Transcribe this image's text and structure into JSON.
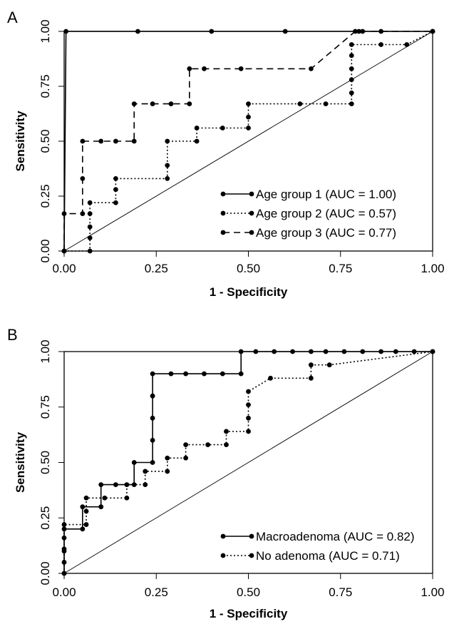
{
  "chart_data": [
    {
      "panel": "A",
      "type": "line",
      "xlabel": "1 - Specificity",
      "ylabel": "Sensitivity",
      "xlim": [
        0,
        1
      ],
      "ylim": [
        0,
        1
      ],
      "xticks": [
        "0.00",
        "0.25",
        "0.50",
        "0.75",
        "1.00"
      ],
      "yticks": [
        "0.00",
        "0.25",
        "0.50",
        "0.75",
        "1.00"
      ],
      "grid": false,
      "reference_line": true,
      "legend_position": "bottom-right",
      "series": [
        {
          "name": "Age group 1 (AUC = 1.00)",
          "dash": "solid",
          "points": [
            [
              0,
              0
            ],
            [
              0.005,
              1
            ],
            [
              0.2,
              1
            ],
            [
              0.4,
              1
            ],
            [
              0.6,
              1
            ],
            [
              0.8,
              1
            ],
            [
              1,
              1
            ]
          ]
        },
        {
          "name": "Age group 2 (AUC = 0.57)",
          "dash": "dotted",
          "points": [
            [
              0,
              0
            ],
            [
              0.07,
              0
            ],
            [
              0.07,
              0.06
            ],
            [
              0.07,
              0.11
            ],
            [
              0.07,
              0.17
            ],
            [
              0.07,
              0.22
            ],
            [
              0.14,
              0.22
            ],
            [
              0.14,
              0.28
            ],
            [
              0.14,
              0.33
            ],
            [
              0.28,
              0.33
            ],
            [
              0.28,
              0.39
            ],
            [
              0.28,
              0.5
            ],
            [
              0.36,
              0.5
            ],
            [
              0.36,
              0.56
            ],
            [
              0.43,
              0.56
            ],
            [
              0.5,
              0.56
            ],
            [
              0.5,
              0.61
            ],
            [
              0.5,
              0.67
            ],
            [
              0.64,
              0.67
            ],
            [
              0.71,
              0.67
            ],
            [
              0.78,
              0.67
            ],
            [
              0.78,
              0.72
            ],
            [
              0.78,
              0.78
            ],
            [
              0.78,
              0.83
            ],
            [
              0.78,
              0.89
            ],
            [
              0.78,
              0.94
            ],
            [
              0.86,
              0.94
            ],
            [
              0.93,
              0.94
            ],
            [
              1,
              1
            ]
          ]
        },
        {
          "name": "Age group 3 (AUC = 0.77)",
          "dash": "dashed",
          "points": [
            [
              0,
              0
            ],
            [
              0,
              0.17
            ],
            [
              0.05,
              0.17
            ],
            [
              0.05,
              0.33
            ],
            [
              0.05,
              0.5
            ],
            [
              0.1,
              0.5
            ],
            [
              0.14,
              0.5
            ],
            [
              0.19,
              0.5
            ],
            [
              0.19,
              0.67
            ],
            [
              0.24,
              0.67
            ],
            [
              0.29,
              0.67
            ],
            [
              0.34,
              0.67
            ],
            [
              0.34,
              0.83
            ],
            [
              0.38,
              0.83
            ],
            [
              0.48,
              0.83
            ],
            [
              0.67,
              0.83
            ],
            [
              0.79,
              1
            ],
            [
              0.81,
              1
            ],
            [
              0.86,
              1
            ],
            [
              1,
              1
            ]
          ]
        }
      ]
    },
    {
      "panel": "B",
      "type": "line",
      "xlabel": "1 - Specificity",
      "ylabel": "Sensitivity",
      "xlim": [
        0,
        1
      ],
      "ylim": [
        0,
        1
      ],
      "xticks": [
        "0.00",
        "0.25",
        "0.50",
        "0.75",
        "1.00"
      ],
      "yticks": [
        "0.00",
        "0.25",
        "0.50",
        "0.75",
        "1.00"
      ],
      "grid": false,
      "reference_line": true,
      "legend_position": "bottom-right",
      "series": [
        {
          "name": "Macroadenoma (AUC = 0.82)",
          "dash": "solid",
          "points": [
            [
              0,
              0
            ],
            [
              0,
              0.1
            ],
            [
              0,
              0.2
            ],
            [
              0.05,
              0.2
            ],
            [
              0.05,
              0.3
            ],
            [
              0.1,
              0.3
            ],
            [
              0.1,
              0.4
            ],
            [
              0.14,
              0.4
            ],
            [
              0.19,
              0.4
            ],
            [
              0.19,
              0.5
            ],
            [
              0.24,
              0.5
            ],
            [
              0.24,
              0.6
            ],
            [
              0.24,
              0.7
            ],
            [
              0.24,
              0.8
            ],
            [
              0.24,
              0.9
            ],
            [
              0.29,
              0.9
            ],
            [
              0.33,
              0.9
            ],
            [
              0.38,
              0.9
            ],
            [
              0.43,
              0.9
            ],
            [
              0.48,
              0.9
            ],
            [
              0.48,
              1
            ],
            [
              0.52,
              1
            ],
            [
              0.57,
              1
            ],
            [
              0.62,
              1
            ],
            [
              0.67,
              1
            ],
            [
              0.71,
              1
            ],
            [
              0.76,
              1
            ],
            [
              0.81,
              1
            ],
            [
              0.86,
              1
            ],
            [
              0.9,
              1
            ],
            [
              0.95,
              1
            ],
            [
              1,
              1
            ]
          ]
        },
        {
          "name": "No adenoma (AUC = 0.71)",
          "dash": "dotted",
          "points": [
            [
              0,
              0
            ],
            [
              0,
              0.05
            ],
            [
              0,
              0.11
            ],
            [
              0,
              0.16
            ],
            [
              0,
              0.22
            ],
            [
              0.06,
              0.22
            ],
            [
              0.06,
              0.28
            ],
            [
              0.06,
              0.34
            ],
            [
              0.11,
              0.34
            ],
            [
              0.17,
              0.34
            ],
            [
              0.17,
              0.4
            ],
            [
              0.22,
              0.4
            ],
            [
              0.22,
              0.46
            ],
            [
              0.28,
              0.46
            ],
            [
              0.28,
              0.52
            ],
            [
              0.33,
              0.52
            ],
            [
              0.33,
              0.58
            ],
            [
              0.39,
              0.58
            ],
            [
              0.44,
              0.58
            ],
            [
              0.44,
              0.64
            ],
            [
              0.5,
              0.64
            ],
            [
              0.5,
              0.7
            ],
            [
              0.5,
              0.76
            ],
            [
              0.5,
              0.82
            ],
            [
              0.56,
              0.88
            ],
            [
              0.67,
              0.88
            ],
            [
              0.67,
              0.94
            ],
            [
              0.72,
              0.94
            ],
            [
              1,
              1
            ]
          ]
        }
      ]
    }
  ]
}
